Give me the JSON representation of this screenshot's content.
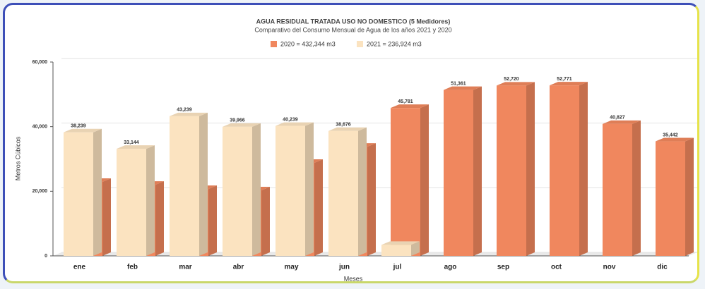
{
  "chart_data": {
    "type": "bar3d",
    "title": "AGUA RESIDUAL TRATADA USO NO DOMESTICO (5 Medidores)",
    "subtitle": "Comparativo del Consumo Mensual de Agua de los años 2021 y 2020",
    "x_label": "Meses",
    "y_label": "Metros Cúbicos",
    "categories": [
      "ene",
      "feb",
      "mar",
      "abr",
      "may",
      "jun",
      "jul",
      "ago",
      "sep",
      "oct",
      "nov",
      "dic"
    ],
    "series": [
      {
        "name": "2020 = 432,344 m3",
        "color": "#f0875e",
        "values": [
          22900,
          22000,
          20700,
          20300,
          28800,
          33800,
          45781,
          51361,
          52720,
          52771,
          40827,
          35442
        ],
        "value_labels": [
          null,
          null,
          null,
          null,
          null,
          null,
          "45,781",
          "51,361",
          "52,720",
          "52,771",
          "40,827",
          "35,442"
        ]
      },
      {
        "name": "2021 = 236,924 m3",
        "color": "#fbe3c0",
        "values": [
          38239,
          33144,
          43239,
          39966,
          40239,
          38676,
          3421,
          null,
          null,
          null,
          null,
          null
        ],
        "value_labels": [
          "38,239",
          "33,144",
          "43,239",
          "39,966",
          "40,239",
          "38,676",
          null,
          null,
          null,
          null,
          null,
          null
        ]
      }
    ],
    "ylim": [
      0,
      60000
    ],
    "yticks": [
      0,
      {
        "value": 20000,
        "label": "20,000"
      },
      {
        "value": 40000,
        "label": "40,000"
      },
      {
        "value": 60000,
        "label": "60,000"
      }
    ],
    "grid": true,
    "legend": "top"
  }
}
